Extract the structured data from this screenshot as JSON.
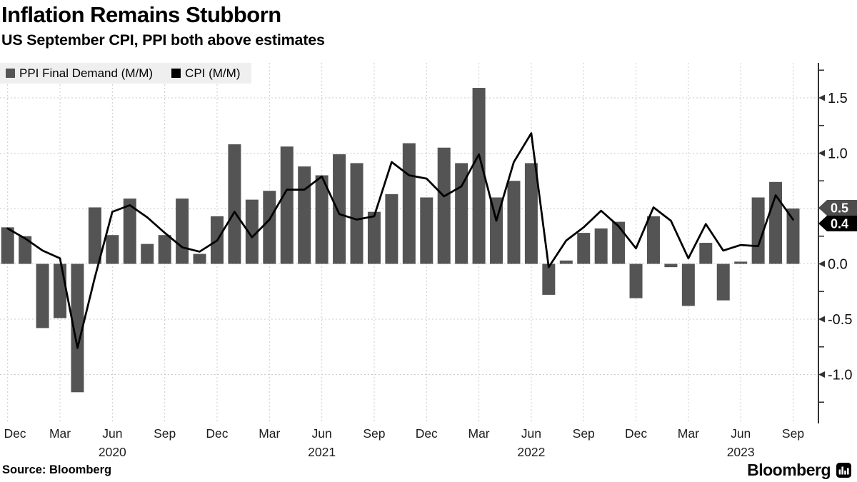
{
  "title": "Inflation Remains Stubborn",
  "subtitle": "US September CPI, PPI both above estimates",
  "source": "Source: Bloomberg",
  "brand": "Bloomberg",
  "legend": [
    {
      "label": "PPI Final Demand (M/M)",
      "color": "#545454"
    },
    {
      "label": "CPI (M/M)",
      "color": "#000000"
    }
  ],
  "chart_data": {
    "type": "bar",
    "title": "Inflation Remains Stubborn",
    "subtitle": "US September CPI, PPI both above estimates",
    "grid": true,
    "legend_position": "top-left",
    "ylim": [
      -1.44,
      1.82
    ],
    "yticks": [
      -1.0,
      -0.5,
      0.0,
      0.5,
      1.0,
      1.5
    ],
    "minor_tick_step": 0.25,
    "x_tick_every": 3,
    "x": [
      "Dec 2019",
      "Jan 2020",
      "Feb 2020",
      "Mar 2020",
      "Apr 2020",
      "May 2020",
      "Jun 2020",
      "Jul 2020",
      "Aug 2020",
      "Sep 2020",
      "Oct 2020",
      "Nov 2020",
      "Dec 2020",
      "Jan 2021",
      "Feb 2021",
      "Mar 2021",
      "Apr 2021",
      "May 2021",
      "Jun 2021",
      "Jul 2021",
      "Aug 2021",
      "Sep 2021",
      "Oct 2021",
      "Nov 2021",
      "Dec 2021",
      "Jan 2022",
      "Feb 2022",
      "Mar 2022",
      "Apr 2022",
      "May 2022",
      "Jun 2022",
      "Jul 2022",
      "Aug 2022",
      "Sep 2022",
      "Oct 2022",
      "Nov 2022",
      "Dec 2022",
      "Jan 2023",
      "Feb 2023",
      "Mar 2023",
      "Apr 2023",
      "May 2023",
      "Jun 2023",
      "Jul 2023",
      "Aug 2023",
      "Sep 2023"
    ],
    "series": [
      {
        "name": "PPI Final Demand (M/M)",
        "mark": "bar",
        "color": "#545454",
        "values": [
          0.33,
          0.25,
          -0.58,
          -0.49,
          -1.16,
          0.51,
          0.26,
          0.59,
          0.18,
          0.26,
          0.59,
          0.09,
          0.43,
          1.08,
          0.58,
          0.66,
          1.06,
          0.88,
          0.8,
          0.99,
          0.91,
          0.47,
          0.63,
          1.09,
          0.6,
          1.05,
          0.91,
          1.59,
          0.6,
          0.75,
          0.91,
          -0.28,
          0.03,
          0.28,
          0.32,
          0.38,
          -0.31,
          0.43,
          -0.03,
          -0.38,
          0.19,
          -0.33,
          0.02,
          0.6,
          0.74,
          0.5
        ]
      },
      {
        "name": "CPI (M/M)",
        "mark": "line",
        "color": "#000000",
        "values": [
          0.32,
          0.23,
          0.12,
          0.05,
          -0.76,
          -0.12,
          0.47,
          0.53,
          0.42,
          0.28,
          0.15,
          0.11,
          0.21,
          0.47,
          0.24,
          0.4,
          0.67,
          0.67,
          0.79,
          0.45,
          0.4,
          0.43,
          0.92,
          0.8,
          0.77,
          0.61,
          0.7,
          0.99,
          0.39,
          0.92,
          1.18,
          -0.03,
          0.21,
          0.33,
          0.48,
          0.34,
          0.14,
          0.51,
          0.39,
          0.05,
          0.36,
          0.12,
          0.17,
          0.16,
          0.62,
          0.4
        ]
      }
    ],
    "year_labels": [
      {
        "text": "2020",
        "index": 6
      },
      {
        "text": "2021",
        "index": 18
      },
      {
        "text": "2022",
        "index": 30
      },
      {
        "text": "2023",
        "index": 42
      }
    ],
    "end_labels": [
      {
        "text": "0.5",
        "bg": "#4d4d4d"
      },
      {
        "text": "0.4",
        "bg": "#000000"
      }
    ]
  }
}
